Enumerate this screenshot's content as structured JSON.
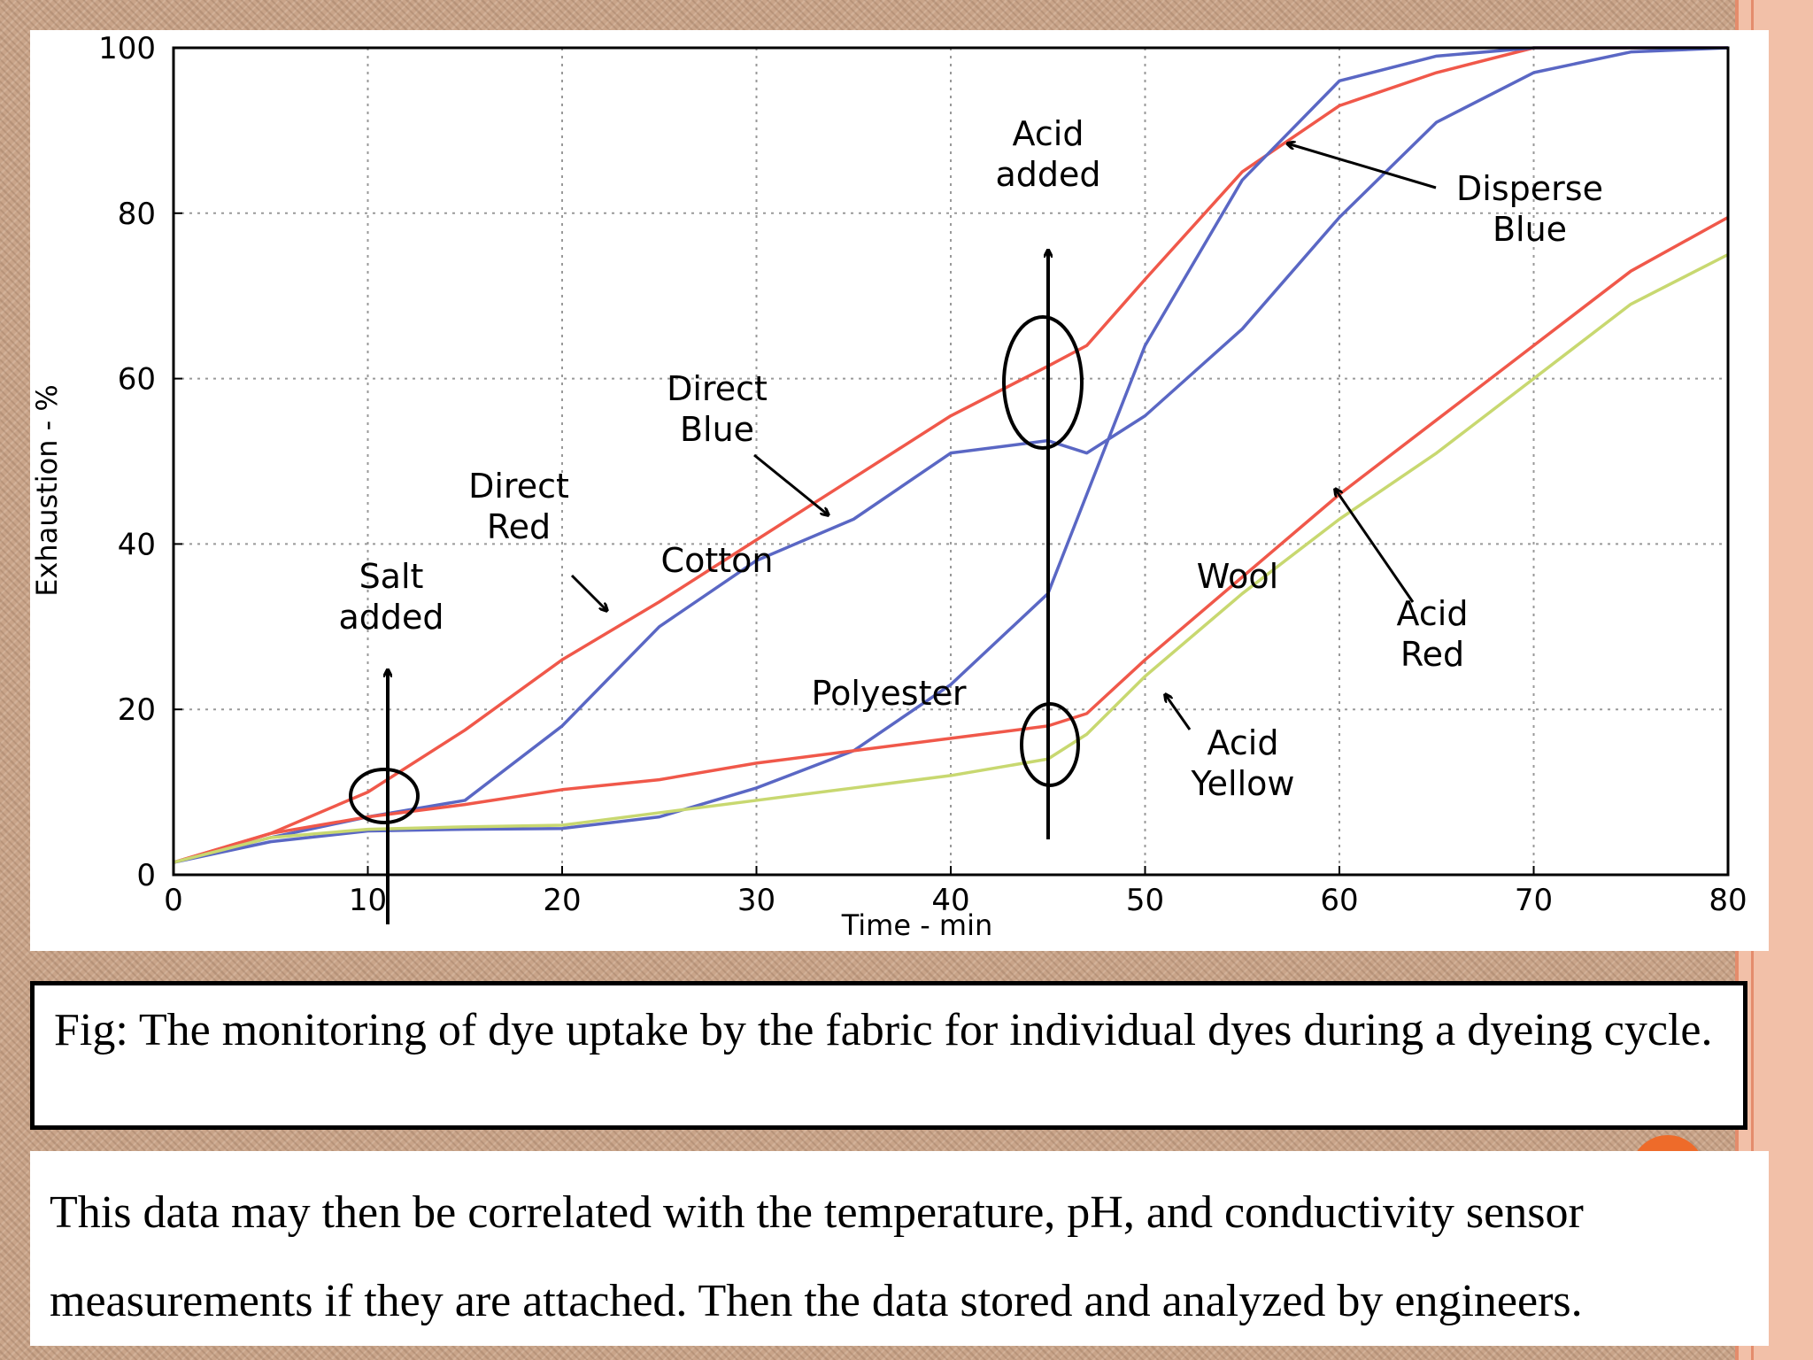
{
  "chart_data": {
    "type": "line",
    "xlabel": "Time - min",
    "ylabel": "Exhaustion - %",
    "xlim": [
      0,
      80
    ],
    "ylim": [
      0,
      100
    ],
    "x_ticks": [
      "0",
      "10",
      "20",
      "30",
      "40",
      "50",
      "60",
      "70",
      "80"
    ],
    "y_ticks": [
      "0",
      "20",
      "40",
      "60",
      "80",
      "100"
    ],
    "grid": true,
    "series": [
      {
        "name": "Direct Red",
        "color": "#f0584a",
        "x": [
          0,
          5,
          10,
          15,
          20,
          25,
          30,
          35,
          40,
          45,
          47,
          50,
          55,
          60,
          65,
          70,
          80
        ],
        "y": [
          1.5,
          5,
          10,
          17.5,
          26,
          33,
          40.5,
          48,
          55.5,
          61.5,
          64,
          72,
          85,
          93,
          97,
          100,
          100
        ]
      },
      {
        "name": "Direct Blue",
        "color": "#5a67c4",
        "x": [
          0,
          5,
          10,
          15,
          20,
          25,
          30,
          35,
          40,
          45,
          47,
          50,
          55,
          60,
          65,
          70,
          75,
          80
        ],
        "y": [
          1.5,
          4.5,
          7,
          9,
          18,
          30,
          38,
          43,
          51,
          52.5,
          51,
          55.5,
          66,
          79.5,
          91,
          97,
          99.5,
          100
        ]
      },
      {
        "name": "Disperse Blue",
        "color": "#5a67c4",
        "x": [
          0,
          5,
          10,
          15,
          20,
          25,
          30,
          35,
          40,
          45,
          47,
          50,
          55,
          60,
          65,
          70,
          80
        ],
        "y": [
          1.5,
          4,
          5.3,
          5.5,
          5.6,
          7,
          10.5,
          15,
          23,
          34,
          46,
          64,
          84,
          96,
          99,
          100,
          100
        ]
      },
      {
        "name": "Acid Red",
        "color": "#f0584a",
        "x": [
          0,
          5,
          10,
          15,
          20,
          25,
          30,
          35,
          40,
          45,
          47,
          50,
          55,
          60,
          65,
          70,
          75,
          80
        ],
        "y": [
          1.5,
          5,
          7,
          8.5,
          10.3,
          11.5,
          13.5,
          15,
          16.5,
          18,
          19.5,
          26,
          36,
          46,
          55,
          64,
          73,
          79.5
        ]
      },
      {
        "name": "Acid Yellow",
        "color": "#c8d870",
        "x": [
          0,
          5,
          10,
          15,
          20,
          25,
          30,
          35,
          40,
          45,
          47,
          50,
          55,
          60,
          65,
          70,
          75,
          80
        ],
        "y": [
          1.5,
          4.5,
          5.5,
          5.8,
          6,
          7.5,
          9,
          10.5,
          12,
          14,
          17,
          24,
          34,
          43,
          51,
          60,
          69,
          75
        ]
      }
    ],
    "annotations": {
      "salt_added": "Salt\nadded",
      "acid_added": "Acid\nadded",
      "direct_red": "Direct\nRed",
      "direct_blue": "Direct\nBlue",
      "cotton": "Cotton",
      "polyester": "Polyester",
      "disperse_blue": "Disperse\nBlue",
      "wool": "Wool",
      "acid_red": "Acid\nRed",
      "acid_yellow": "Acid\nYellow"
    }
  },
  "caption": "Fig: The monitoring of dye uptake by the fabric for individual dyes during a dyeing cycle.",
  "body_text": {
    "line1": "This data may then be correlated with the temperature, pH, and conductivity sensor",
    "line2": "measurements if they are attached. Then the data stored and analyzed by engineers."
  },
  "colors": {
    "red_series": "#f0584a",
    "blue_series": "#5a67c4",
    "yellow_series": "#c8d870",
    "grid": "#999999"
  }
}
